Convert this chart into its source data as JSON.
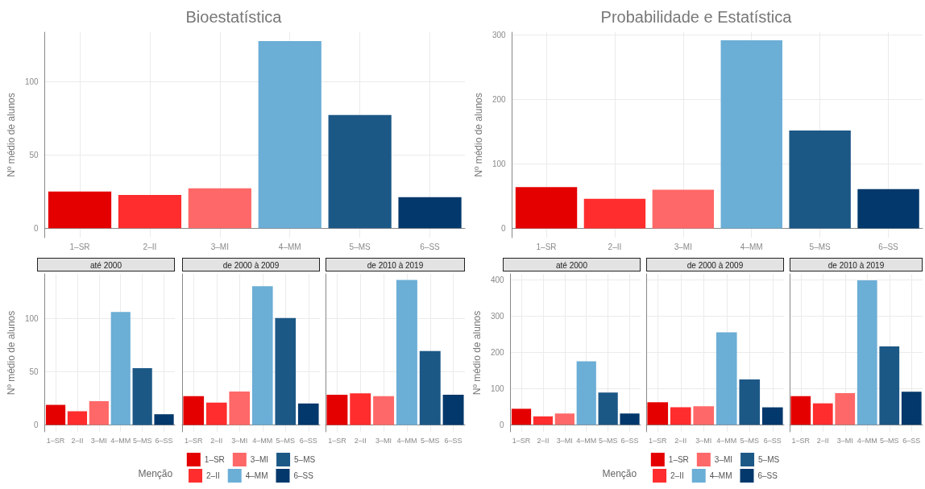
{
  "chart_data": [
    {
      "type": "bar",
      "title": "Bioestatística",
      "ylabel": "Nº médio de alunos",
      "categories": [
        "1–SR",
        "2–II",
        "3–MI",
        "4–MM",
        "5–MS",
        "6–SS"
      ],
      "values": [
        25,
        22.7,
        27.2,
        127.4,
        77.1,
        21.1
      ],
      "colors": [
        "#e50000",
        "#ff2d2d",
        "#ff6868",
        "#6baed6",
        "#1c5886",
        "#02386b"
      ],
      "ylim": [
        -6.4,
        133.5
      ],
      "yticks": [
        0,
        50,
        100
      ],
      "grid": true
    },
    {
      "type": "bar",
      "title": "Probabilidade e Estatística",
      "ylabel": "Nº médio de alunos",
      "categories": [
        "1–SR",
        "2–II",
        "3–MI",
        "4–MM",
        "5–MS",
        "6–SS"
      ],
      "values": [
        64,
        46,
        60,
        292,
        152,
        61
      ],
      "colors": [
        "#e50000",
        "#ff2d2d",
        "#ff6868",
        "#6baed6",
        "#1c5886",
        "#02386b"
      ],
      "ylim": [
        -14.5,
        304.6
      ],
      "yticks": [
        0,
        100,
        200,
        300
      ],
      "grid": true
    },
    {
      "type": "bar",
      "title": "até 2000",
      "ylabel": "Nº médio de alunos",
      "categories": [
        "1–SR",
        "2–II",
        "3–MI",
        "4–MM",
        "5–MS",
        "6–SS"
      ],
      "values": [
        18.8,
        12.8,
        22.3,
        106,
        53.3,
        10
      ],
      "colors": [
        "#e50000",
        "#ff2d2d",
        "#ff6868",
        "#6baed6",
        "#1c5886",
        "#02386b"
      ],
      "ylim": [
        -6.5,
        141.8
      ],
      "yticks": [
        0,
        50,
        100
      ],
      "grid": true
    },
    {
      "type": "bar",
      "title": "de 2000 à 2009",
      "categories": [
        "1–SR",
        "2–II",
        "3–MI",
        "4–MM",
        "5–MS",
        "6–SS"
      ],
      "series": [
        {
          "name": "1–SR",
          "color": "#e50000",
          "values": [
            26.9,
            null,
            null,
            null,
            null,
            null
          ]
        },
        {
          "name": "2–II",
          "color": "#ff2d2d",
          "values": [
            null,
            20.9,
            null,
            null,
            null,
            null
          ]
        },
        {
          "name": "3–MI",
          "color": "#ff6868",
          "values": [
            null,
            null,
            31.3,
            null,
            null,
            null
          ]
        },
        {
          "name": "4–MM",
          "color": "#6baed6",
          "values": [
            null,
            null,
            null,
            130.2,
            null,
            null
          ]
        },
        {
          "name": "5–MS",
          "color": "#1c5886",
          "values": [
            null,
            null,
            null,
            null,
            100.3,
            null
          ]
        },
        {
          "name": "6–SS",
          "color": "#02386b",
          "values": [
            null,
            null,
            null,
            null,
            null,
            20.1
          ]
        }
      ],
      "ylim": [
        -6.5,
        141.8
      ],
      "yticks": [
        0,
        50,
        100
      ],
      "grid": true,
      "tick_labels": "x",
      "legend": "bottom",
      "legend_title": "Menção"
    },
    {
      "type": "bar",
      "title": "de 2010 à 2019",
      "categories": [
        "1–SR",
        "2–II",
        "3–MI",
        "4–MM",
        "5–MS",
        "6–SS"
      ],
      "values": [
        28.3,
        29.6,
        26.9,
        136.1,
        69.3,
        28.3
      ],
      "colors": [
        "#e50000",
        "#ff2d2d",
        "#ff6868",
        "#6baed6",
        "#1c5886",
        "#02386b"
      ],
      "ylim": [
        -6.5,
        141.8
      ],
      "yticks": [
        0,
        50,
        100
      ],
      "grid": true,
      "tick_labels": "x"
    },
    {
      "type": "bar",
      "title": "até 2000",
      "ylabel": "Nº médio de alunos",
      "categories": [
        "1–SR",
        "2–II",
        "3–MI",
        "4–MM",
        "5–MS",
        "6–SS"
      ],
      "values": [
        44,
        23,
        31,
        175,
        89,
        31
      ],
      "colors": [
        "#e50000",
        "#ff2d2d",
        "#ff6868",
        "#6baed6",
        "#1c5886",
        "#02386b"
      ],
      "ylim": [
        -19.5,
        416
      ],
      "yticks": [
        0,
        100,
        200,
        300,
        400
      ],
      "grid": true
    },
    {
      "type": "bar",
      "title": "de 2000 à 2009",
      "categories": [
        "1–SR",
        "2–II",
        "3–MI",
        "4–MM",
        "5–MS",
        "6–SS"
      ],
      "series": [
        {
          "name": "1–SR",
          "color": "#e50000",
          "values": [
            62,
            null,
            null,
            null,
            null,
            null
          ]
        },
        {
          "name": "2–II",
          "color": "#ff2d2d",
          "values": [
            null,
            48,
            null,
            null,
            null,
            null
          ]
        },
        {
          "name": "3–MI",
          "color": "#ff6868",
          "values": [
            null,
            null,
            51,
            null,
            null,
            null
          ]
        },
        {
          "name": "4–MM",
          "color": "#6baed6",
          "values": [
            null,
            null,
            null,
            255,
            null,
            null
          ]
        },
        {
          "name": "5–MS",
          "color": "#1c5886",
          "values": [
            null,
            null,
            null,
            null,
            125,
            null
          ]
        },
        {
          "name": "6–SS",
          "color": "#02386b",
          "values": [
            null,
            null,
            null,
            null,
            null,
            48
          ]
        }
      ],
      "ylim": [
        -19.5,
        416
      ],
      "yticks": [
        0,
        100,
        200,
        300,
        400
      ],
      "grid": true,
      "tick_labels": "x",
      "legend": "bottom",
      "legend_title": "Menção"
    },
    {
      "type": "bar",
      "title": "de 2010 à 2019",
      "categories": [
        "1–SR",
        "2–II",
        "3–MI",
        "4–MM",
        "5–MS",
        "6–SS"
      ],
      "values": [
        79,
        59,
        87,
        398,
        216,
        91
      ],
      "colors": [
        "#e50000",
        "#ff2d2d",
        "#ff6868",
        "#6baed6",
        "#1c5886",
        "#02386b"
      ],
      "ylim": [
        -19.5,
        416
      ],
      "yticks": [
        0,
        100,
        200,
        300,
        400
      ],
      "grid": true,
      "tick_labels": "x"
    }
  ]
}
